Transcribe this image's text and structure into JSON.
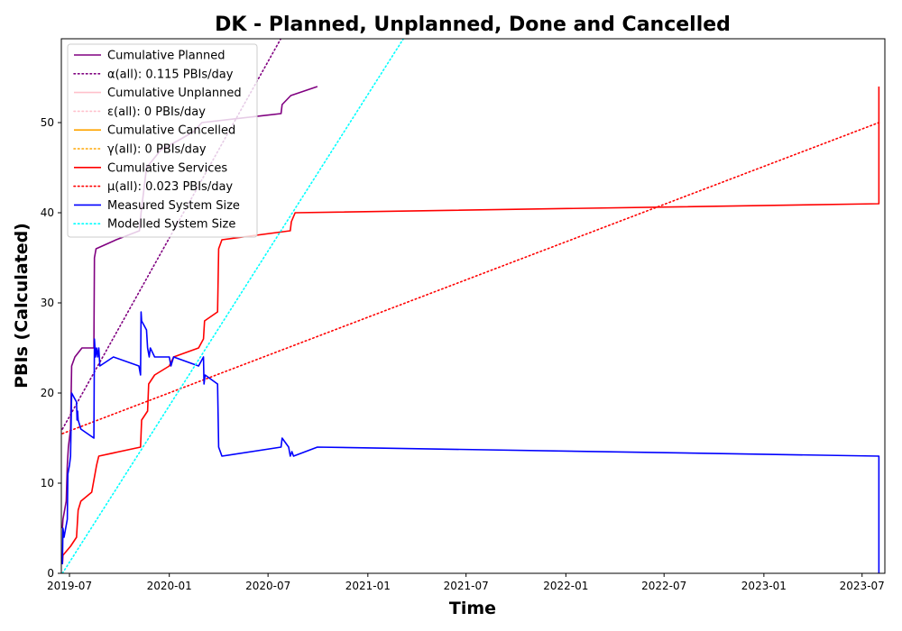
{
  "chart_data": {
    "type": "line",
    "title": "DK - Planned, Unplanned, Done  and Cancelled",
    "xlabel": "Time",
    "ylabel": "PBIs (Calculated)",
    "xlim": [
      "2019-06-16",
      "2023-08-12"
    ],
    "ylim": [
      0,
      59.3
    ],
    "x_ticks": [
      "2019-07",
      "2020-01",
      "2020-07",
      "2021-01",
      "2021-07",
      "2022-01",
      "2022-07",
      "2023-01",
      "2023-07"
    ],
    "y_ticks": [
      0,
      10,
      20,
      30,
      40,
      50
    ],
    "grid": false,
    "legend_position": "top-left",
    "series": [
      {
        "name": "Cumulative Planned",
        "style": "solid",
        "color": "#800080",
        "points": [
          [
            "2019-06-18",
            5
          ],
          [
            "2019-06-19",
            6
          ],
          [
            "2019-06-25",
            8
          ],
          [
            "2019-06-27",
            12
          ],
          [
            "2019-06-29",
            14
          ],
          [
            "2019-07-03",
            16
          ],
          [
            "2019-07-05",
            23
          ],
          [
            "2019-07-11",
            24
          ],
          [
            "2019-07-24",
            25
          ],
          [
            "2019-08-15",
            25
          ],
          [
            "2019-08-16",
            35
          ],
          [
            "2019-08-19",
            36
          ],
          [
            "2019-09-25",
            37
          ],
          [
            "2019-11-07",
            38
          ],
          [
            "2019-11-10",
            40
          ],
          [
            "2019-11-20",
            45
          ],
          [
            "2019-12-17",
            47
          ],
          [
            "2020-01-17",
            48
          ],
          [
            "2020-02-15",
            49
          ],
          [
            "2020-03-01",
            50
          ],
          [
            "2020-07-25",
            51
          ],
          [
            "2020-07-27",
            52
          ],
          [
            "2020-08-12",
            53
          ],
          [
            "2020-09-30",
            54
          ]
        ]
      },
      {
        "name": "α(all): 0.115 PBIs/day",
        "style": "dotted",
        "color": "#800080",
        "points": [
          [
            "2019-06-18",
            16
          ],
          [
            "2020-07-31",
            60
          ]
        ]
      },
      {
        "name": "Cumulative Unplanned",
        "style": "solid",
        "color": "#ffc0cb",
        "points": []
      },
      {
        "name": "ε(all): 0 PBIs/day",
        "style": "dotted",
        "color": "#ffc0cb",
        "points": []
      },
      {
        "name": "Cumulative Cancelled",
        "style": "solid",
        "color": "#ffa500",
        "points": []
      },
      {
        "name": "γ(all): 0 PBIs/day",
        "style": "dotted",
        "color": "#ffa500",
        "points": []
      },
      {
        "name": "Cumulative Services",
        "style": "solid",
        "color": "#ff0000",
        "points": [
          [
            "2019-06-18",
            1
          ],
          [
            "2019-06-19",
            2
          ],
          [
            "2019-07-03",
            3
          ],
          [
            "2019-07-14",
            4
          ],
          [
            "2019-07-17",
            7
          ],
          [
            "2019-07-22",
            8
          ],
          [
            "2019-08-11",
            9
          ],
          [
            "2019-08-20",
            12
          ],
          [
            "2019-08-24",
            13
          ],
          [
            "2019-11-09",
            14
          ],
          [
            "2019-11-11",
            17
          ],
          [
            "2019-11-22",
            18
          ],
          [
            "2019-11-24",
            21
          ],
          [
            "2019-12-05",
            22
          ],
          [
            "2020-01-01",
            23
          ],
          [
            "2020-01-09",
            24
          ],
          [
            "2020-02-24",
            25
          ],
          [
            "2020-03-04",
            26
          ],
          [
            "2020-03-06",
            28
          ],
          [
            "2020-03-30",
            29
          ],
          [
            "2020-04-01",
            36
          ],
          [
            "2020-04-07",
            37
          ],
          [
            "2020-08-11",
            38
          ],
          [
            "2020-08-13",
            39
          ],
          [
            "2020-08-20",
            40
          ],
          [
            "2023-08-01",
            41
          ],
          [
            "2023-08-01",
            54
          ]
        ]
      },
      {
        "name": "μ(all): 0.023 PBIs/day",
        "style": "dotted",
        "color": "#ff0000",
        "points": [
          [
            "2019-06-18",
            15.5
          ],
          [
            "2023-08-01",
            50
          ]
        ]
      },
      {
        "name": "Measured System Size",
        "style": "solid",
        "color": "#0000ff",
        "points": [
          [
            "2019-06-18",
            1
          ],
          [
            "2019-06-19",
            5
          ],
          [
            "2019-06-21",
            4
          ],
          [
            "2019-06-24",
            5
          ],
          [
            "2019-06-27",
            6
          ],
          [
            "2019-06-28",
            11
          ],
          [
            "2019-07-01",
            12
          ],
          [
            "2019-07-03",
            13
          ],
          [
            "2019-07-05",
            20
          ],
          [
            "2019-07-14",
            19
          ],
          [
            "2019-07-15",
            17
          ],
          [
            "2019-07-16",
            18
          ],
          [
            "2019-07-17",
            17
          ],
          [
            "2019-07-22",
            16
          ],
          [
            "2019-08-15",
            15
          ],
          [
            "2019-08-16",
            26
          ],
          [
            "2019-08-18",
            24
          ],
          [
            "2019-08-20",
            25
          ],
          [
            "2019-08-22",
            24
          ],
          [
            "2019-08-24",
            25
          ],
          [
            "2019-08-26",
            23
          ],
          [
            "2019-09-20",
            24
          ],
          [
            "2019-11-06",
            23
          ],
          [
            "2019-11-09",
            22
          ],
          [
            "2019-11-10",
            29
          ],
          [
            "2019-11-11",
            28
          ],
          [
            "2019-11-20",
            27
          ],
          [
            "2019-11-22",
            25
          ],
          [
            "2019-11-25",
            24
          ],
          [
            "2019-11-27",
            25
          ],
          [
            "2019-12-05",
            24
          ],
          [
            "2020-01-01",
            24
          ],
          [
            "2020-01-04",
            23
          ],
          [
            "2020-01-09",
            24
          ],
          [
            "2020-02-24",
            23
          ],
          [
            "2020-03-04",
            24
          ],
          [
            "2020-03-05",
            21
          ],
          [
            "2020-03-07",
            22
          ],
          [
            "2020-03-30",
            21
          ],
          [
            "2020-04-01",
            14
          ],
          [
            "2020-04-07",
            13
          ],
          [
            "2020-07-25",
            14
          ],
          [
            "2020-07-27",
            15
          ],
          [
            "2020-08-08",
            14
          ],
          [
            "2020-08-11",
            13
          ],
          [
            "2020-08-14",
            13.5
          ],
          [
            "2020-08-17",
            13
          ],
          [
            "2020-09-30",
            14
          ],
          [
            "2023-08-01",
            13
          ],
          [
            "2023-08-01",
            0
          ]
        ]
      },
      {
        "name": "Modelled System Size",
        "style": "dotted",
        "color": "#00ffff",
        "points": [
          [
            "2019-06-18",
            0
          ],
          [
            "2021-03-15",
            60
          ]
        ]
      }
    ]
  }
}
